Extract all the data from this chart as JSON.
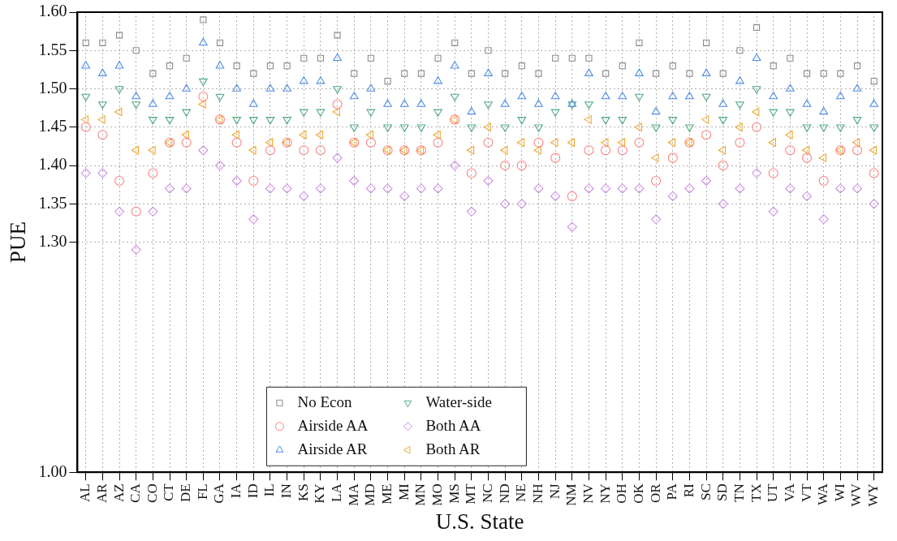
{
  "chart_data": {
    "type": "scatter",
    "xlabel": "U.S. State",
    "ylabel": "PUE",
    "categories": [
      "AL",
      "AR",
      "AZ",
      "CA",
      "CO",
      "CT",
      "DE",
      "FL",
      "GA",
      "IA",
      "ID",
      "IL",
      "IN",
      "KS",
      "KY",
      "LA",
      "MA",
      "MD",
      "ME",
      "MI",
      "MN",
      "MO",
      "MS",
      "MT",
      "NC",
      "ND",
      "NE",
      "NH",
      "NJ",
      "NM",
      "NV",
      "NY",
      "OH",
      "OK",
      "OR",
      "PA",
      "RI",
      "SC",
      "SD",
      "TN",
      "TX",
      "UT",
      "VA",
      "VT",
      "WA",
      "WI",
      "WV",
      "WY"
    ],
    "series": [
      {
        "name": "No Econ",
        "color": "#8c8c8c",
        "marker": "square",
        "values": [
          1.56,
          1.56,
          1.57,
          1.55,
          1.52,
          1.53,
          1.54,
          1.59,
          1.56,
          1.53,
          1.52,
          1.53,
          1.53,
          1.54,
          1.54,
          1.57,
          1.52,
          1.54,
          1.51,
          1.52,
          1.52,
          1.54,
          1.56,
          1.52,
          1.55,
          1.52,
          1.53,
          1.52,
          1.54,
          1.54,
          1.54,
          1.52,
          1.53,
          1.56,
          1.52,
          1.53,
          1.52,
          1.56,
          1.52,
          1.55,
          1.58,
          1.53,
          1.54,
          1.52,
          1.52,
          1.52,
          1.53,
          1.51
        ]
      },
      {
        "name": "Airside AA",
        "color": "#ff8080",
        "marker": "circle",
        "values": [
          1.45,
          1.44,
          1.38,
          1.34,
          1.39,
          1.43,
          1.43,
          1.49,
          1.46,
          1.43,
          1.38,
          1.42,
          1.43,
          1.42,
          1.42,
          1.48,
          1.43,
          1.43,
          1.42,
          1.42,
          1.42,
          1.43,
          1.46,
          1.39,
          1.43,
          1.4,
          1.4,
          1.43,
          1.41,
          1.36,
          1.42,
          1.42,
          1.42,
          1.43,
          1.38,
          1.41,
          1.43,
          1.44,
          1.4,
          1.43,
          1.45,
          1.39,
          1.42,
          1.41,
          1.38,
          1.42,
          1.42,
          1.39
        ]
      },
      {
        "name": "Airside AR",
        "color": "#4d8ce8",
        "marker": "triangle",
        "values": [
          1.53,
          1.52,
          1.53,
          1.49,
          1.48,
          1.49,
          1.5,
          1.56,
          1.53,
          1.5,
          1.48,
          1.5,
          1.5,
          1.51,
          1.51,
          1.54,
          1.49,
          1.5,
          1.48,
          1.48,
          1.48,
          1.51,
          1.53,
          1.47,
          1.52,
          1.48,
          1.49,
          1.48,
          1.49,
          1.48,
          1.52,
          1.49,
          1.49,
          1.52,
          1.47,
          1.49,
          1.49,
          1.52,
          1.48,
          1.51,
          1.54,
          1.49,
          1.5,
          1.48,
          1.47,
          1.49,
          1.5,
          1.48
        ]
      },
      {
        "name": "Water-side",
        "color": "#4fab80",
        "marker": "triangle-down",
        "values": [
          1.49,
          1.48,
          1.5,
          1.48,
          1.46,
          1.46,
          1.47,
          1.51,
          1.49,
          1.46,
          1.46,
          1.46,
          1.46,
          1.47,
          1.47,
          1.5,
          1.45,
          1.47,
          1.45,
          1.45,
          1.45,
          1.47,
          1.49,
          1.45,
          1.48,
          1.45,
          1.46,
          1.45,
          1.47,
          1.48,
          1.48,
          1.46,
          1.46,
          1.49,
          1.45,
          1.46,
          1.45,
          1.49,
          1.46,
          1.48,
          1.5,
          1.47,
          1.47,
          1.45,
          1.45,
          1.45,
          1.46,
          1.45
        ]
      },
      {
        "name": "Both AA",
        "color": "#d08ce8",
        "marker": "diamond",
        "values": [
          1.39,
          1.39,
          1.34,
          1.29,
          1.34,
          1.37,
          1.37,
          1.42,
          1.4,
          1.38,
          1.33,
          1.37,
          1.37,
          1.36,
          1.37,
          1.41,
          1.38,
          1.37,
          1.37,
          1.36,
          1.37,
          1.37,
          1.4,
          1.34,
          1.38,
          1.35,
          1.35,
          1.37,
          1.36,
          1.32,
          1.37,
          1.37,
          1.37,
          1.37,
          1.33,
          1.36,
          1.37,
          1.38,
          1.35,
          1.37,
          1.39,
          1.34,
          1.37,
          1.36,
          1.33,
          1.37,
          1.37,
          1.35
        ]
      },
      {
        "name": "Both AR",
        "color": "#f0a830",
        "marker": "triangle-left",
        "values": [
          1.46,
          1.46,
          1.47,
          1.42,
          1.42,
          1.43,
          1.44,
          1.48,
          1.46,
          1.44,
          1.42,
          1.43,
          1.43,
          1.44,
          1.44,
          1.47,
          1.43,
          1.44,
          1.42,
          1.42,
          1.42,
          1.44,
          1.46,
          1.42,
          1.45,
          1.42,
          1.43,
          1.42,
          1.43,
          1.43,
          1.46,
          1.43,
          1.43,
          1.45,
          1.41,
          1.43,
          1.43,
          1.46,
          1.42,
          1.45,
          1.47,
          1.43,
          1.44,
          1.42,
          1.41,
          1.42,
          1.43,
          1.42
        ]
      }
    ],
    "ylim": [
      1.0,
      1.6
    ],
    "yticks": [
      {
        "value": 1.0,
        "label": "1.00"
      },
      {
        "value": 1.3,
        "label": "1.30"
      },
      {
        "value": 1.35,
        "label": "1.35"
      },
      {
        "value": 1.4,
        "label": "1.40"
      },
      {
        "value": 1.45,
        "label": "1.45"
      },
      {
        "value": 1.5,
        "label": "1.50"
      },
      {
        "value": 1.55,
        "label": "1.55"
      },
      {
        "value": 1.6,
        "label": "1.60"
      }
    ],
    "grid": true,
    "legend": "bottom left"
  }
}
